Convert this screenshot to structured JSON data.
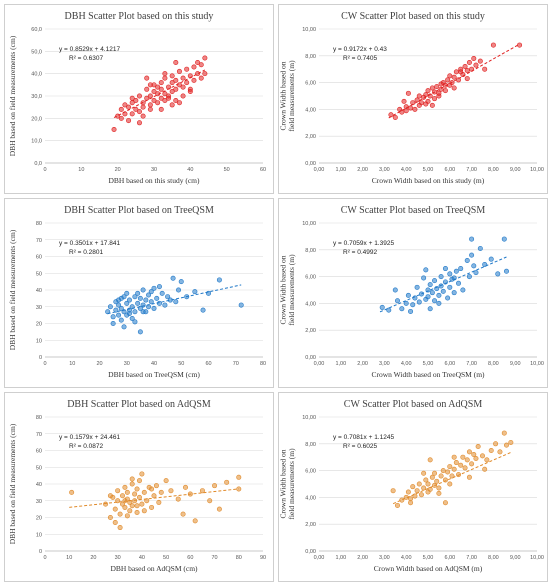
{
  "chart_data": [
    {
      "type": "scatter",
      "title": "DBH Scatter Plot based on this study",
      "xlabel": "DBH based on this study (cm)",
      "ylabel": "DBH based on field measurements (cm)",
      "xlim": [
        0,
        60
      ],
      "ylim": [
        0,
        60
      ],
      "xticks": [
        "0",
        "10",
        "20",
        "30",
        "40",
        "50",
        "60"
      ],
      "yticks": [
        "0,0",
        "10,0",
        "20,0",
        "30,0",
        "40,0",
        "50,0",
        "60,0"
      ],
      "equation": "y = 0.8529x + 4.1217",
      "r2": "R² = 0.6307",
      "trend": {
        "slope": 0.8529,
        "intercept": 4.1217,
        "x_range": [
          19,
          44
        ]
      },
      "color": "#e02020",
      "x": [
        19,
        20,
        21,
        21,
        22,
        22,
        23,
        23,
        24,
        24,
        25,
        25,
        26,
        26,
        27,
        27,
        27,
        28,
        28,
        29,
        29,
        29,
        30,
        30,
        30,
        31,
        31,
        31,
        32,
        32,
        32,
        33,
        33,
        33,
        34,
        34,
        34,
        35,
        35,
        35,
        36,
        36,
        36,
        37,
        37,
        38,
        38,
        39,
        39,
        40,
        40,
        41,
        41,
        42,
        42,
        43,
        43,
        44,
        44,
        38,
        29,
        26,
        32,
        36,
        40,
        24,
        33,
        37,
        28,
        35
      ],
      "y": [
        15,
        21,
        20,
        24,
        22,
        26,
        19,
        25,
        27,
        22,
        24,
        28,
        23,
        30,
        25,
        27,
        21,
        29,
        33,
        26,
        30,
        24,
        28,
        32,
        35,
        27,
        31,
        34,
        29,
        33,
        36,
        28,
        31,
        38,
        30,
        34,
        29,
        36,
        32,
        39,
        33,
        37,
        28,
        35,
        41,
        34,
        38,
        36,
        42,
        33,
        39,
        37,
        43,
        40,
        45,
        38,
        44,
        47,
        40,
        30,
        35,
        18,
        24,
        45,
        32,
        29,
        40,
        27,
        38,
        26
      ]
    },
    {
      "type": "scatter",
      "title": "CW Scatter Plot based on this study",
      "xlabel": "Crown Width based on this study (m)",
      "ylabel": "Crown Width based on field measurements (m)",
      "xlim": [
        0,
        10
      ],
      "ylim": [
        0,
        10
      ],
      "xticks": [
        "0,00",
        "1,00",
        "2,00",
        "3,00",
        "4,00",
        "5,00",
        "6,00",
        "7,00",
        "8,00",
        "9,00",
        "10,00"
      ],
      "yticks": [
        "0,00",
        "2,00",
        "4,00",
        "6,00",
        "8,00",
        "10,00"
      ],
      "equation": "y = 0.9172x + 0.43",
      "r2": "R² = 0.7405",
      "trend": {
        "slope": 0.9172,
        "intercept": 0.43,
        "x_range": [
          3.2,
          9.2
        ]
      },
      "color": "#e02020",
      "x": [
        3.3,
        3.5,
        3.7,
        3.8,
        4.0,
        4.1,
        4.2,
        4.3,
        4.4,
        4.5,
        4.6,
        4.6,
        4.7,
        4.8,
        4.9,
        5.0,
        5.0,
        5.1,
        5.2,
        5.3,
        5.3,
        5.4,
        5.5,
        5.6,
        5.6,
        5.7,
        5.8,
        5.9,
        6.0,
        6.0,
        6.1,
        6.2,
        6.3,
        6.4,
        6.5,
        6.6,
        6.7,
        6.8,
        6.9,
        7.0,
        7.1,
        7.2,
        7.4,
        7.6,
        8.0,
        9.2,
        4.0,
        4.9,
        5.5,
        6.2,
        6.8,
        3.9,
        5.2,
        5.8,
        6.5
      ],
      "y": [
        3.6,
        3.4,
        4.0,
        3.8,
        4.2,
        5.2,
        4.1,
        4.5,
        4.0,
        4.7,
        4.3,
        5.0,
        4.5,
        4.9,
        5.1,
        4.6,
        5.4,
        5.0,
        5.6,
        4.8,
        5.3,
        5.7,
        5.2,
        5.9,
        5.5,
        6.0,
        5.4,
        6.2,
        5.8,
        6.5,
        6.0,
        6.4,
        6.8,
        6.2,
        7.0,
        6.6,
        7.2,
        6.9,
        7.5,
        7.0,
        7.8,
        7.3,
        7.6,
        7.0,
        8.8,
        8.8,
        3.9,
        4.4,
        5.0,
        5.6,
        6.3,
        4.6,
        4.3,
        5.8,
        6.8
      ]
    },
    {
      "type": "scatter",
      "title": "DBH Scatter Plot based on TreeQSM",
      "xlabel": "DBH based on TreeQSM (cm)",
      "ylabel": "DBH based on field measurements (cm)",
      "xlim": [
        0,
        80
      ],
      "ylim": [
        0,
        80
      ],
      "xticks": [
        "0",
        "10",
        "20",
        "30",
        "40",
        "50",
        "60",
        "70",
        "80"
      ],
      "yticks": [
        "0",
        "10",
        "20",
        "30",
        "40",
        "50",
        "60",
        "70",
        "80"
      ],
      "equation": "y = 0.3501x + 17.841",
      "r2": "R² = 0.2801",
      "trend": {
        "slope": 0.3501,
        "intercept": 17.841,
        "x_range": [
          23,
          72
        ]
      },
      "color": "#1f78c8",
      "x": [
        23,
        24,
        25,
        25,
        26,
        26,
        27,
        27,
        28,
        28,
        28,
        29,
        29,
        30,
        30,
        30,
        31,
        31,
        32,
        32,
        33,
        33,
        34,
        34,
        35,
        35,
        36,
        36,
        37,
        37,
        38,
        38,
        39,
        40,
        40,
        41,
        42,
        43,
        44,
        45,
        46,
        47,
        48,
        49,
        50,
        52,
        55,
        58,
        60,
        64,
        72,
        29,
        33,
        36,
        39,
        42,
        31,
        27,
        35
      ],
      "y": [
        27,
        30,
        24,
        20,
        28,
        33,
        25,
        31,
        22,
        35,
        29,
        27,
        36,
        32,
        25,
        38,
        28,
        34,
        30,
        23,
        36,
        27,
        32,
        38,
        29,
        35,
        31,
        40,
        27,
        34,
        30,
        37,
        33,
        29,
        41,
        35,
        32,
        38,
        31,
        36,
        34,
        47,
        33,
        40,
        45,
        36,
        39,
        28,
        38,
        46,
        31,
        18,
        21,
        27,
        39,
        42,
        26,
        34,
        15
      ]
    },
    {
      "type": "scatter",
      "title": "CW Scatter Plot based on TreeQSM",
      "xlabel": "Crown Width based on TreeQSM (m)",
      "ylabel": "Crown Width based on field measurements (m)",
      "xlim": [
        0,
        10
      ],
      "ylim": [
        0,
        10
      ],
      "xticks": [
        "0,00",
        "1,00",
        "2,00",
        "3,00",
        "4,00",
        "5,00",
        "6,00",
        "7,00",
        "8,00",
        "9,00",
        "10,00"
      ],
      "yticks": [
        "0,00",
        "2,00",
        "4,00",
        "6,00",
        "8,00",
        "10,00"
      ],
      "equation": "y = 0.7059x + 1.3925",
      "r2": "R² = 0.4992",
      "trend": {
        "slope": 0.7059,
        "intercept": 1.3925,
        "x_range": [
          2.8,
          8.6
        ]
      },
      "color": "#1f78c8",
      "x": [
        2.9,
        3.2,
        3.5,
        3.8,
        4.0,
        4.1,
        4.3,
        4.4,
        4.5,
        4.6,
        4.7,
        4.8,
        4.9,
        5.0,
        5.0,
        5.1,
        5.2,
        5.3,
        5.3,
        5.4,
        5.5,
        5.6,
        5.6,
        5.7,
        5.8,
        5.9,
        6.0,
        6.0,
        6.1,
        6.2,
        6.3,
        6.4,
        6.5,
        6.6,
        6.8,
        6.9,
        7.0,
        7.1,
        7.2,
        7.4,
        7.6,
        7.9,
        8.2,
        8.5,
        8.6,
        3.6,
        4.2,
        4.9,
        5.5,
        6.2,
        7.0,
        5.1,
        5.8
      ],
      "y": [
        3.7,
        3.5,
        5.0,
        3.6,
        4.0,
        4.6,
        3.9,
        4.4,
        5.2,
        4.1,
        4.7,
        5.9,
        4.3,
        5.0,
        4.5,
        5.4,
        4.8,
        5.7,
        4.2,
        5.1,
        4.6,
        6.0,
        5.3,
        4.9,
        5.6,
        4.4,
        5.2,
        6.2,
        5.8,
        4.8,
        6.4,
        5.5,
        6.6,
        5.0,
        7.2,
        6.0,
        8.8,
        6.8,
        6.3,
        8.1,
        6.9,
        7.3,
        6.2,
        8.8,
        6.4,
        4.2,
        3.4,
        6.5,
        4.0,
        5.9,
        7.6,
        3.6,
        6.6
      ]
    },
    {
      "type": "scatter",
      "title": "DBH Scatter Plot based on AdQSM",
      "xlabel": "DBH based on AdQSM (cm)",
      "ylabel": "DBH based on field measurements (cm)",
      "xlim": [
        0,
        90
      ],
      "ylim": [
        0,
        80
      ],
      "xticks": [
        "0",
        "10",
        "20",
        "30",
        "40",
        "50",
        "60",
        "70",
        "80",
        "90"
      ],
      "yticks": [
        "0",
        "10",
        "20",
        "30",
        "40",
        "50",
        "60",
        "70",
        "80"
      ],
      "equation": "y = 0.1579x + 24.461",
      "r2": "R² = 0.0872",
      "trend": {
        "slope": 0.1579,
        "intercept": 24.461,
        "x_range": [
          10,
          80
        ]
      },
      "color": "#e08a2a",
      "x": [
        11,
        25,
        27,
        28,
        29,
        30,
        30,
        31,
        32,
        32,
        33,
        33,
        34,
        34,
        35,
        35,
        36,
        36,
        37,
        37,
        38,
        38,
        39,
        39,
        40,
        40,
        41,
        42,
        43,
        44,
        45,
        46,
        47,
        48,
        50,
        52,
        55,
        57,
        58,
        60,
        62,
        65,
        68,
        70,
        72,
        75,
        80,
        80,
        29,
        31,
        34,
        36,
        38,
        41,
        44,
        27,
        33
      ],
      "y": [
        35,
        28,
        20,
        32,
        25,
        30,
        36,
        22,
        33,
        28,
        38,
        26,
        31,
        35,
        24,
        29,
        40,
        27,
        34,
        30,
        37,
        23,
        42,
        32,
        28,
        46,
        35,
        30,
        38,
        26,
        33,
        39,
        29,
        35,
        42,
        36,
        31,
        22,
        38,
        34,
        18,
        36,
        30,
        39,
        25,
        41,
        37,
        44,
        17,
        14,
        21,
        43,
        27,
        24,
        37,
        33,
        30
      ]
    },
    {
      "type": "scatter",
      "title": "CW Scatter Plot based on AdQSM",
      "xlabel": "Crown Width based on AdQSM (m)",
      "ylabel": "Crown Width based on field measurements (m)",
      "xlim": [
        0,
        10
      ],
      "ylim": [
        0,
        10
      ],
      "xticks": [
        "0,00",
        "1,00",
        "2,00",
        "3,00",
        "4,00",
        "5,00",
        "6,00",
        "7,00",
        "8,00",
        "9,00",
        "10,00"
      ],
      "yticks": [
        "0,00",
        "2,00",
        "4,00",
        "6,00",
        "8,00",
        "10,00"
      ],
      "equation": "y = 0.7081x + 1.1245",
      "r2": "R² = 0.6025",
      "trend": {
        "slope": 0.7081,
        "intercept": 1.1245,
        "x_range": [
          3.4,
          8.8
        ]
      },
      "color": "#e08a2a",
      "x": [
        3.4,
        3.6,
        3.8,
        4.0,
        4.1,
        4.2,
        4.3,
        4.4,
        4.5,
        4.6,
        4.7,
        4.8,
        4.9,
        5.0,
        5.0,
        5.1,
        5.2,
        5.3,
        5.3,
        5.4,
        5.5,
        5.6,
        5.7,
        5.8,
        5.9,
        6.0,
        6.0,
        6.1,
        6.2,
        6.3,
        6.4,
        6.5,
        6.6,
        6.7,
        6.8,
        6.9,
        7.0,
        7.1,
        7.2,
        7.3,
        7.5,
        7.7,
        7.9,
        8.1,
        8.3,
        8.5,
        8.6,
        8.8,
        4.2,
        4.8,
        5.5,
        6.2,
        6.9,
        7.6,
        5.1,
        5.8
      ],
      "y": [
        4.5,
        3.4,
        3.8,
        4.0,
        4.4,
        3.6,
        4.8,
        4.1,
        4.5,
        5.0,
        4.2,
        4.7,
        5.3,
        4.4,
        5.0,
        4.6,
        5.5,
        4.9,
        5.8,
        5.2,
        4.7,
        5.6,
        6.0,
        5.3,
        5.9,
        5.0,
        6.3,
        5.6,
        6.1,
        6.6,
        5.7,
        6.4,
        7.0,
        6.2,
        6.8,
        7.4,
        6.5,
        7.2,
        6.9,
        7.8,
        7.1,
        6.8,
        7.5,
        8.0,
        7.4,
        8.8,
        7.9,
        8.1,
        3.9,
        5.8,
        4.3,
        7.0,
        5.5,
        6.1,
        6.8,
        3.6
      ]
    }
  ]
}
